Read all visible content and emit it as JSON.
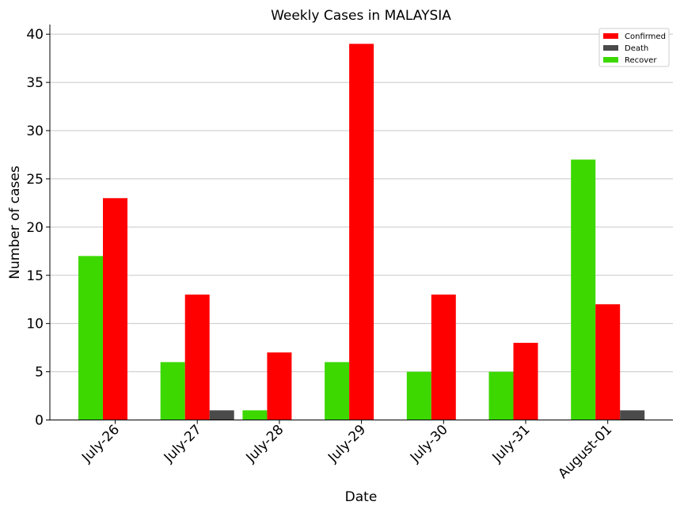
{
  "chart_data": {
    "type": "bar",
    "title": "Weekly Cases in MALAYSIA",
    "xlabel": "Date",
    "ylabel": "Number of cases",
    "categories": [
      "July-26",
      "July-27",
      "July-28",
      "July-29",
      "July-30",
      "July-31",
      "August-01"
    ],
    "series": [
      {
        "name": "Recover",
        "color": "#3cd800",
        "values": [
          17,
          6,
          1,
          6,
          5,
          5,
          27
        ]
      },
      {
        "name": "Confirmed",
        "color": "#ff0000",
        "values": [
          23,
          13,
          7,
          39,
          13,
          8,
          12
        ]
      },
      {
        "name": "Death",
        "color": "#4a4a4a",
        "values": [
          0,
          1,
          0,
          0,
          0,
          0,
          1
        ]
      }
    ],
    "legend_order": [
      "Confirmed",
      "Death",
      "Recover"
    ],
    "legend_position": "top-right",
    "ylim": [
      0,
      41
    ],
    "yticks": [
      0,
      5,
      10,
      15,
      20,
      25,
      30,
      35,
      40
    ],
    "grid": "horizontal"
  }
}
